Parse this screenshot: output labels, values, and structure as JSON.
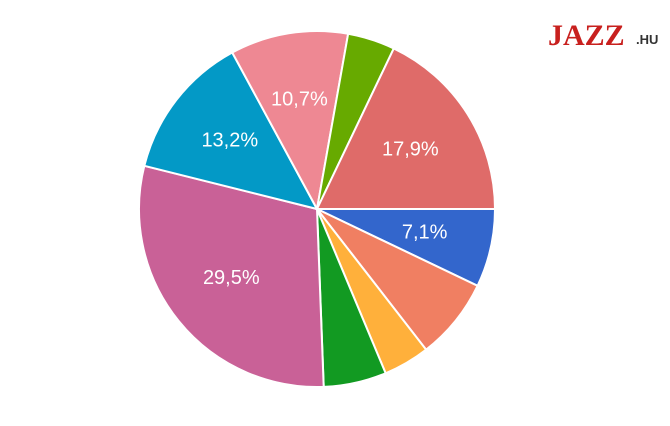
{
  "chart_data": {
    "type": "pie",
    "values": [
      7.1,
      7.4,
      4.2,
      5.7,
      29.5,
      13.2,
      10.7,
      4.3,
      17.9
    ],
    "value_labels": [
      "7,1%",
      null,
      null,
      null,
      "29,5%",
      "13,2%",
      "10,7%",
      null,
      "17,9%"
    ],
    "colors": [
      "#3366cc",
      "#f07f62",
      "#ffb03b",
      "#129a22",
      "#c96197",
      "#0399c6",
      "#ee8893",
      "#67aa00",
      "#df6b69"
    ]
  },
  "logo": {
    "main": "JAZZ",
    "suffix": ".HU"
  }
}
